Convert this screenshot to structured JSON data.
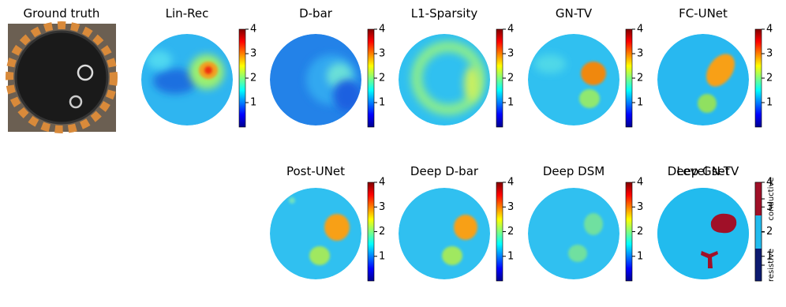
{
  "ground_truth": {
    "title": "Ground truth"
  },
  "colorbar": {
    "lim": [
      0,
      4
    ],
    "ticks": [
      1,
      2,
      3,
      4
    ]
  },
  "panels": [
    {
      "title": "Lin-Rec"
    },
    {
      "title": "D-bar"
    },
    {
      "title": "L1-Sparsity"
    },
    {
      "title": "GN-TV"
    },
    {
      "title": "FC-UNet"
    },
    {
      "title": "Post-UNet"
    },
    {
      "title": "Deep D-bar"
    },
    {
      "title": "Deep DSM"
    },
    {
      "title": "Deep GN-TV"
    }
  ],
  "level_set": {
    "title": "Level set",
    "labels": [
      "conductive",
      "resistive"
    ]
  }
}
